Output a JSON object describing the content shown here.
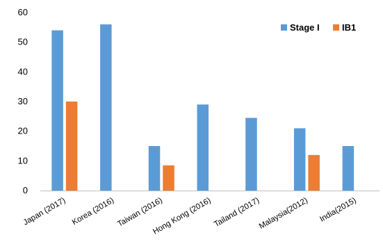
{
  "chart_data": {
    "type": "bar",
    "categories": [
      "Japan (2017)",
      "Korea (2016)",
      "Taiwan (2016)",
      "Hong Kong (2016)",
      "Tailand (2017)",
      "Malaysia(2012)",
      "India(2015)"
    ],
    "series": [
      {
        "name": "Stage I",
        "values": [
          54,
          56,
          15,
          29,
          24.5,
          21,
          15
        ],
        "color": "#5b9bd5"
      },
      {
        "name": "IB1",
        "values": [
          30,
          null,
          8.5,
          null,
          null,
          12,
          null
        ],
        "color": "#ed7d31"
      }
    ],
    "yticks": [
      "0",
      "10",
      "20",
      "30",
      "40",
      "50",
      "60"
    ],
    "ylim": [
      0,
      60
    ],
    "grid": false,
    "legend_position": "top-right"
  }
}
